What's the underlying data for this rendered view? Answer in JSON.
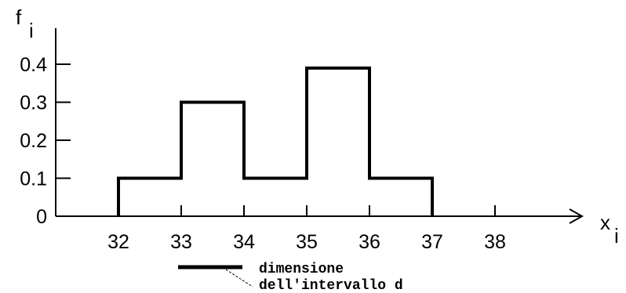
{
  "chart_data": {
    "type": "histogram",
    "ylabel": {
      "symbol": "f",
      "subscript": "i"
    },
    "xlabel": {
      "symbol": "x",
      "subscript": "i"
    },
    "y_ticks": [
      "0",
      "0.1",
      "0.2",
      "0.3",
      "0.4"
    ],
    "x_ticks": [
      "32",
      "33",
      "34",
      "35",
      "36",
      "37",
      "38"
    ],
    "ylim": [
      0,
      0.4
    ],
    "xlim": [
      32,
      38
    ],
    "bins": [
      {
        "from": 32,
        "to": 33,
        "value": 0.1
      },
      {
        "from": 33,
        "to": 34,
        "value": 0.3
      },
      {
        "from": 34,
        "to": 35,
        "value": 0.1
      },
      {
        "from": 35,
        "to": 36,
        "value": 0.39
      },
      {
        "from": 36,
        "to": 37,
        "value": 0.1
      }
    ],
    "legend": {
      "line1": "dimensione",
      "line2": "dell'intervallo d"
    },
    "grid": false
  }
}
